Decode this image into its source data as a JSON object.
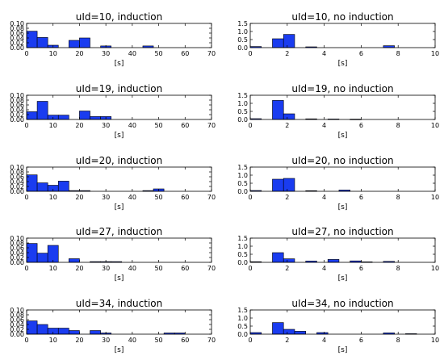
{
  "chart_data": [
    {
      "type": "bar",
      "title": "uId=10, induction",
      "xlabel": "[s]",
      "ylabel": "",
      "xlim": [
        0,
        70
      ],
      "ylim": [
        0,
        0.1
      ],
      "xticks": [
        "0",
        "10",
        "20",
        "30",
        "40",
        "50",
        "60",
        "70"
      ],
      "yticks": [
        "0.00",
        "0.02",
        "0.04",
        "0.06",
        "0.08",
        "0.10"
      ],
      "bin_width": 4,
      "bins": [
        {
          "x": 0,
          "value": 0.068
        },
        {
          "x": 4,
          "value": 0.042
        },
        {
          "x": 8,
          "value": 0.01
        },
        {
          "x": 16,
          "value": 0.03
        },
        {
          "x": 20,
          "value": 0.04
        },
        {
          "x": 28,
          "value": 0.007
        },
        {
          "x": 44,
          "value": 0.007
        }
      ]
    },
    {
      "type": "bar",
      "title": "uId=10, no induction",
      "xlabel": "[s]",
      "ylabel": "",
      "xlim": [
        0,
        10
      ],
      "ylim": [
        0,
        1.5
      ],
      "xticks": [
        "0",
        "2",
        "4",
        "6",
        "8",
        "10"
      ],
      "yticks": [
        "0.0",
        "0.5",
        "1.0",
        "1.5"
      ],
      "bin_width": 0.6,
      "bins": [
        {
          "x": 0,
          "value": 0.07
        },
        {
          "x": 1.2,
          "value": 0.55
        },
        {
          "x": 1.8,
          "value": 0.82
        },
        {
          "x": 3.0,
          "value": 0.05
        },
        {
          "x": 7.2,
          "value": 0.12
        }
      ]
    },
    {
      "type": "bar",
      "title": "uId=19, induction",
      "xlabel": "[s]",
      "ylabel": "",
      "xlim": [
        0,
        70
      ],
      "ylim": [
        0,
        0.1
      ],
      "xticks": [
        "0",
        "10",
        "20",
        "30",
        "40",
        "50",
        "60",
        "70"
      ],
      "yticks": [
        "0.00",
        "0.02",
        "0.04",
        "0.06",
        "0.08",
        "0.10"
      ],
      "bin_width": 4,
      "bins": [
        {
          "x": 0,
          "value": 0.032
        },
        {
          "x": 4,
          "value": 0.075
        },
        {
          "x": 8,
          "value": 0.018
        },
        {
          "x": 12,
          "value": 0.018
        },
        {
          "x": 20,
          "value": 0.035
        },
        {
          "x": 24,
          "value": 0.012
        },
        {
          "x": 28,
          "value": 0.012
        }
      ]
    },
    {
      "type": "bar",
      "title": "uId=19, no induction",
      "xlabel": "[s]",
      "ylabel": "",
      "xlim": [
        0,
        10
      ],
      "ylim": [
        0,
        1.5
      ],
      "xticks": [
        "0",
        "2",
        "4",
        "6",
        "8",
        "10"
      ],
      "yticks": [
        "0.0",
        "0.5",
        "1.0",
        "1.5"
      ],
      "bin_width": 0.6,
      "bins": [
        {
          "x": 0,
          "value": 0.05
        },
        {
          "x": 1.2,
          "value": 1.18
        },
        {
          "x": 1.8,
          "value": 0.35
        },
        {
          "x": 3.0,
          "value": 0.04
        },
        {
          "x": 4.2,
          "value": 0.03
        },
        {
          "x": 5.4,
          "value": 0.02
        }
      ]
    },
    {
      "type": "bar",
      "title": "uId=20, induction",
      "xlabel": "[s]",
      "ylabel": "",
      "xlim": [
        0,
        70
      ],
      "ylim": [
        0,
        0.1
      ],
      "xticks": [
        "0",
        "10",
        "20",
        "30",
        "40",
        "50",
        "60",
        "70"
      ],
      "yticks": [
        "0.00",
        "0.02",
        "0.04",
        "0.06",
        "0.08",
        "0.10"
      ],
      "bin_width": 4,
      "bins": [
        {
          "x": 0,
          "value": 0.068
        },
        {
          "x": 4,
          "value": 0.035
        },
        {
          "x": 8,
          "value": 0.025
        },
        {
          "x": 12,
          "value": 0.042
        },
        {
          "x": 16,
          "value": 0.003
        },
        {
          "x": 20,
          "value": 0.003
        },
        {
          "x": 44,
          "value": 0.003
        },
        {
          "x": 48,
          "value": 0.01
        }
      ]
    },
    {
      "type": "bar",
      "title": "uId=20, no induction",
      "xlabel": "[s]",
      "ylabel": "",
      "xlim": [
        0,
        10
      ],
      "ylim": [
        0,
        1.5
      ],
      "xticks": [
        "0",
        "2",
        "4",
        "6",
        "8",
        "10"
      ],
      "yticks": [
        "0.0",
        "0.5",
        "1.0",
        "1.5"
      ],
      "bin_width": 0.6,
      "bins": [
        {
          "x": 0,
          "value": 0.05
        },
        {
          "x": 1.2,
          "value": 0.75
        },
        {
          "x": 1.8,
          "value": 0.8
        },
        {
          "x": 3.0,
          "value": 0.04
        },
        {
          "x": 4.8,
          "value": 0.08
        }
      ]
    },
    {
      "type": "bar",
      "title": "uId=27, induction",
      "xlabel": "[s]",
      "ylabel": "",
      "xlim": [
        0,
        70
      ],
      "ylim": [
        0,
        0.1
      ],
      "xticks": [
        "0",
        "10",
        "20",
        "30",
        "40",
        "50",
        "60",
        "70"
      ],
      "yticks": [
        "0.00",
        "0.02",
        "0.04",
        "0.06",
        "0.08",
        "0.10"
      ],
      "bin_width": 4,
      "bins": [
        {
          "x": 0,
          "value": 0.078
        },
        {
          "x": 4,
          "value": 0.038
        },
        {
          "x": 8,
          "value": 0.07
        },
        {
          "x": 16,
          "value": 0.015
        },
        {
          "x": 24,
          "value": 0.003
        },
        {
          "x": 28,
          "value": 0.003
        },
        {
          "x": 32,
          "value": 0.003
        }
      ]
    },
    {
      "type": "bar",
      "title": "uId=27, no induction",
      "xlabel": "[s]",
      "ylabel": "",
      "xlim": [
        0,
        10
      ],
      "ylim": [
        0,
        1.5
      ],
      "xticks": [
        "0",
        "2",
        "4",
        "6",
        "8",
        "10"
      ],
      "yticks": [
        "0.0",
        "0.5",
        "1.0",
        "1.5"
      ],
      "bin_width": 0.6,
      "bins": [
        {
          "x": 0,
          "value": 0.04
        },
        {
          "x": 1.2,
          "value": 0.6
        },
        {
          "x": 1.8,
          "value": 0.22
        },
        {
          "x": 3.0,
          "value": 0.08
        },
        {
          "x": 4.2,
          "value": 0.18
        },
        {
          "x": 5.4,
          "value": 0.09
        },
        {
          "x": 6.0,
          "value": 0.03
        },
        {
          "x": 7.2,
          "value": 0.06
        }
      ]
    },
    {
      "type": "bar",
      "title": "uId=34, induction",
      "xlabel": "[s]",
      "ylabel": "",
      "xlim": [
        0,
        70
      ],
      "ylim": [
        0,
        0.1
      ],
      "xticks": [
        "0",
        "10",
        "20",
        "30",
        "40",
        "50",
        "60",
        "70"
      ],
      "yticks": [
        "0.00",
        "0.02",
        "0.04",
        "0.06",
        "0.08",
        "0.10"
      ],
      "bin_width": 4,
      "bins": [
        {
          "x": 0,
          "value": 0.055
        },
        {
          "x": 4,
          "value": 0.04
        },
        {
          "x": 8,
          "value": 0.025
        },
        {
          "x": 12,
          "value": 0.025
        },
        {
          "x": 16,
          "value": 0.015
        },
        {
          "x": 24,
          "value": 0.015
        },
        {
          "x": 28,
          "value": 0.005
        },
        {
          "x": 52,
          "value": 0.005
        },
        {
          "x": 56,
          "value": 0.005
        }
      ]
    },
    {
      "type": "bar",
      "title": "uId=34, no induction",
      "xlabel": "[s]",
      "ylabel": "",
      "xlim": [
        0,
        10
      ],
      "ylim": [
        0,
        1.5
      ],
      "xticks": [
        "0",
        "2",
        "4",
        "6",
        "8",
        "10"
      ],
      "yticks": [
        "0.0",
        "0.5",
        "1.0",
        "1.5"
      ],
      "bin_width": 0.6,
      "bins": [
        {
          "x": 0,
          "value": 0.1
        },
        {
          "x": 1.2,
          "value": 0.72
        },
        {
          "x": 1.8,
          "value": 0.3
        },
        {
          "x": 2.4,
          "value": 0.18
        },
        {
          "x": 3.6,
          "value": 0.1
        },
        {
          "x": 7.2,
          "value": 0.08
        },
        {
          "x": 8.4,
          "value": 0.03
        }
      ]
    }
  ]
}
